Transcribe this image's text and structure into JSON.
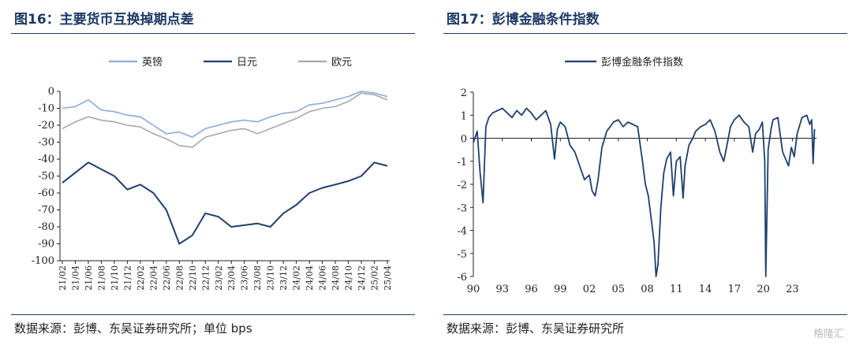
{
  "left": {
    "title": "图16：主要货币互换掉期点差",
    "source": "数据来源：彭博、东吴证券研究所；单位 bps"
  },
  "right": {
    "title": "图17：彭博金融条件指数",
    "source": "数据来源：彭博、东吴证券研究所"
  },
  "watermark": "格隆汇",
  "chart_data": [
    {
      "type": "line",
      "title": "",
      "ylim": [
        -100,
        0
      ],
      "yticks": [
        0,
        -10,
        -20,
        -30,
        -40,
        -50,
        -60,
        -70,
        -80,
        -90,
        -100
      ],
      "categories": [
        "21/02",
        "21/04",
        "21/06",
        "21/08",
        "21/10",
        "21/12",
        "22/02",
        "22/04",
        "22/06",
        "22/08",
        "22/10",
        "22/12",
        "23/02",
        "23/04",
        "23/06",
        "23/08",
        "23/10",
        "23/12",
        "24/02",
        "24/04",
        "24/06",
        "24/08",
        "24/10",
        "24/12",
        "25/02",
        "25/04"
      ],
      "legend_position": "top",
      "series": [
        {
          "name": "英镑",
          "color": "#8eaadb",
          "values": [
            -10,
            -9,
            -5,
            -11,
            -12,
            -14,
            -15,
            -20,
            -25,
            -24,
            -27,
            -22,
            -20,
            -18,
            -17,
            -18,
            -15,
            -13,
            -12,
            -8,
            -7,
            -5,
            -3,
            0,
            -1,
            -3
          ]
        },
        {
          "name": "日元",
          "color": "#1f3f6f",
          "values": [
            -54,
            -48,
            -42,
            -46,
            -50,
            -58,
            -55,
            -60,
            -70,
            -90,
            -85,
            -72,
            -74,
            -80,
            -79,
            -78,
            -80,
            -72,
            -67,
            -60,
            -57,
            -55,
            -53,
            -50,
            -42,
            -44
          ]
        },
        {
          "name": "欧元",
          "color": "#a9a9a9",
          "values": [
            -22,
            -18,
            -15,
            -17,
            -18,
            -20,
            -21,
            -25,
            -28,
            -32,
            -33,
            -27,
            -25,
            -23,
            -22,
            -25,
            -22,
            -19,
            -16,
            -12,
            -10,
            -9,
            -6,
            -1,
            -2,
            -5
          ]
        }
      ]
    },
    {
      "type": "line",
      "title": "",
      "ylim": [
        -6,
        2
      ],
      "yticks": [
        2,
        1,
        0,
        -1,
        -2,
        -3,
        -4,
        -5,
        -6
      ],
      "xlim": [
        1990,
        2025.5
      ],
      "xticks": [
        "90",
        "93",
        "96",
        "99",
        "02",
        "05",
        "08",
        "11",
        "14",
        "17",
        "20",
        "23"
      ],
      "legend_position": "top",
      "series": [
        {
          "name": "彭博金融条件指数",
          "color": "#1f3f6f",
          "x": [
            1990,
            1990.4,
            1990.7,
            1991.0,
            1991.3,
            1991.6,
            1992,
            1992.5,
            1993,
            1993.5,
            1994,
            1994.5,
            1995,
            1995.5,
            1996,
            1996.5,
            1997,
            1997.5,
            1998,
            1998.4,
            1998.7,
            1999,
            1999.5,
            2000,
            2000.5,
            2001,
            2001.5,
            2002,
            2002.3,
            2002.6,
            2002.9,
            2003.3,
            2003.8,
            2004.5,
            2005,
            2005.5,
            2006,
            2006.5,
            2007,
            2007.5,
            2007.8,
            2008.1,
            2008.4,
            2008.7,
            2008.9,
            2009.1,
            2009.4,
            2009.7,
            2010,
            2010.4,
            2010.7,
            2011,
            2011.4,
            2011.7,
            2011.9,
            2012.3,
            2012.7,
            2013,
            2013.5,
            2014,
            2014.5,
            2015,
            2015.5,
            2015.9,
            2016.2,
            2016.6,
            2017,
            2017.5,
            2018,
            2018.5,
            2018.9,
            2019.2,
            2019.6,
            2019.9,
            2020.15,
            2020.25,
            2020.5,
            2020.8,
            2021,
            2021.5,
            2022,
            2022.3,
            2022.6,
            2022.9,
            2023.2,
            2023.5,
            2024,
            2024.5,
            2024.8,
            2025,
            2025.15,
            2025.3
          ],
          "y": [
            -0.2,
            0.3,
            -1.5,
            -2.8,
            0.5,
            0.9,
            1.1,
            1.2,
            1.3,
            1.1,
            0.9,
            1.2,
            1.0,
            1.3,
            1.1,
            0.8,
            1.0,
            1.2,
            0.6,
            -0.9,
            0.4,
            0.7,
            0.5,
            -0.3,
            -0.6,
            -1.2,
            -1.8,
            -1.6,
            -2.3,
            -2.5,
            -1.8,
            -0.4,
            0.3,
            0.7,
            0.8,
            0.5,
            0.7,
            0.6,
            0.5,
            -1.0,
            -2.0,
            -2.5,
            -3.5,
            -4.5,
            -6,
            -5.5,
            -3.0,
            -1.5,
            -0.9,
            -0.6,
            -2.5,
            -1.0,
            -0.8,
            -2.6,
            -1.2,
            -0.3,
            0.0,
            0.3,
            0.5,
            0.6,
            0.8,
            0.3,
            -0.6,
            -1.0,
            -0.4,
            0.5,
            0.8,
            1.0,
            0.7,
            0.5,
            -0.6,
            0.2,
            0.4,
            0.7,
            -1.0,
            -6,
            -0.5,
            0.4,
            0.8,
            0.9,
            -0.6,
            -0.9,
            -1.2,
            -0.4,
            -0.8,
            0.2,
            0.9,
            1.0,
            0.6,
            0.8,
            -1.1,
            0.4
          ]
        }
      ]
    }
  ]
}
